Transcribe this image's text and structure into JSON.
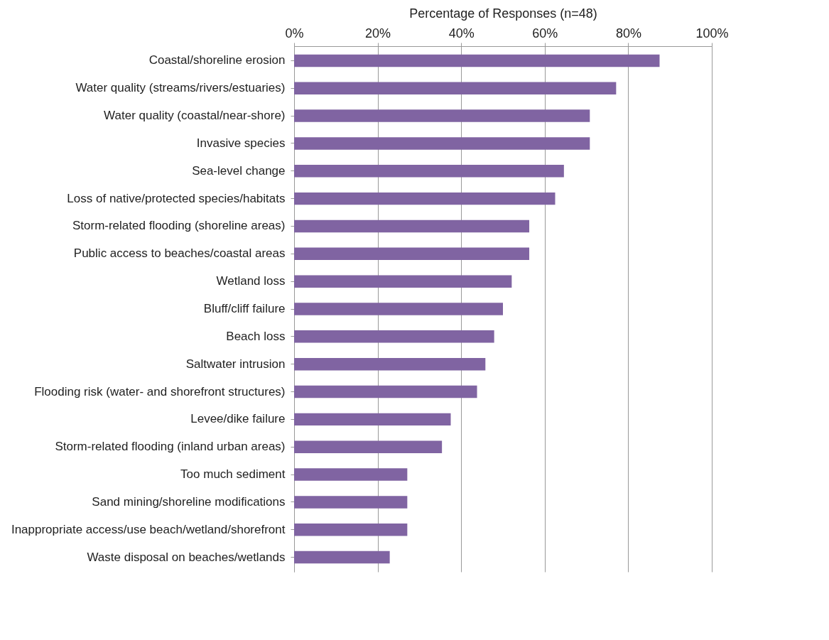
{
  "chart_data": {
    "type": "bar",
    "orientation": "horizontal",
    "xlabel": "Percentage of Responses (n=48)",
    "categories": [
      "Coastal/shoreline erosion",
      "Water quality (streams/rivers/estuaries)",
      "Water quality (coastal/near-shore)",
      "Invasive species",
      "Sea-level change",
      "Loss of native/protected species/habitats",
      "Storm-related flooding (shoreline areas)",
      "Public access to beaches/coastal areas",
      "Wetland loss",
      "Bluff/cliff failure",
      "Beach loss",
      "Saltwater intrusion",
      "Flooding risk (water- and shorefront structures)",
      "Levee/dike failure",
      "Storm-related flooding (inland urban areas)",
      "Too much sediment",
      "Sand mining/shoreline modifications",
      "Inappropriate access/use beach/wetland/shorefront",
      "Waste disposal on beaches/wetlands"
    ],
    "values": [
      87.5,
      77.1,
      70.8,
      70.8,
      64.6,
      62.5,
      56.3,
      56.3,
      52.1,
      50.0,
      47.9,
      45.8,
      43.8,
      37.5,
      35.4,
      27.1,
      27.1,
      27.1,
      22.9
    ],
    "color": "#8064a2",
    "xlim": [
      0,
      100
    ],
    "xticks": [
      {
        "value": 0,
        "label": "0%"
      },
      {
        "value": 20,
        "label": "20%"
      },
      {
        "value": 40,
        "label": "40%"
      },
      {
        "value": 60,
        "label": "60%"
      },
      {
        "value": 80,
        "label": "80%"
      },
      {
        "value": 100,
        "label": "100%"
      }
    ],
    "grid": "x"
  }
}
